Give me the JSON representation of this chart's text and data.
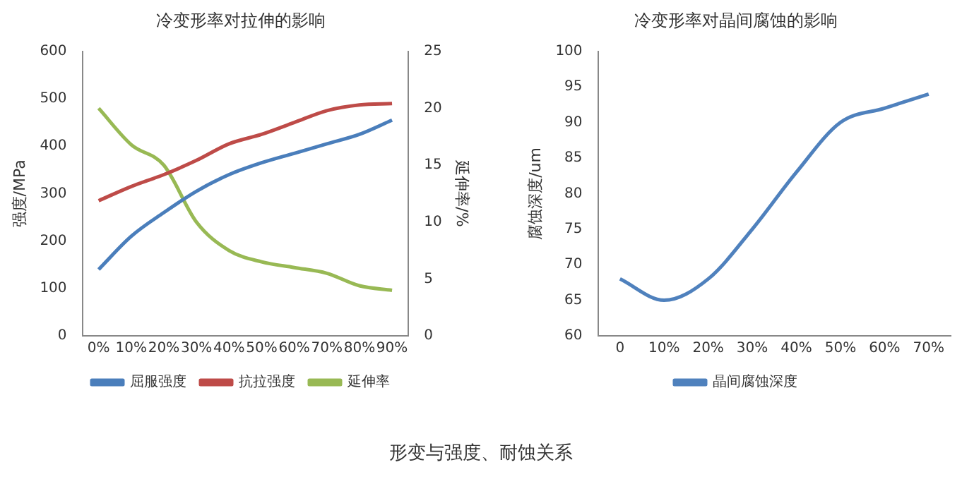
{
  "chart_data": [
    {
      "type": "line",
      "title": "冷变形率对拉伸的影响",
      "ylabel": "强度/MPa",
      "y2label": "延伸率/%",
      "categories": [
        "0%",
        "10%",
        "20%",
        "30%",
        "40%",
        "50%",
        "60%",
        "70%",
        "80%",
        "90%"
      ],
      "series": [
        {
          "name": "屈服强度",
          "color": "#4a7ebb",
          "values": [
            140,
            210,
            260,
            305,
            340,
            365,
            385,
            405,
            425,
            455
          ]
        },
        {
          "name": "抗拉强度",
          "color": "#be4b48",
          "values": [
            285,
            315,
            340,
            370,
            405,
            425,
            450,
            475,
            487,
            490
          ]
        },
        {
          "name": "延伸率",
          "color": "#98b954",
          "axis": "y2",
          "values": [
            20,
            16.8,
            15,
            10,
            7.5,
            6.5,
            6,
            5.5,
            4.4,
            4
          ]
        }
      ],
      "ylim": [
        0,
        600
      ],
      "yticks": [
        0,
        100,
        200,
        300,
        400,
        500,
        600
      ],
      "y2lim": [
        0,
        25
      ],
      "y2ticks": [
        0,
        5,
        10,
        15,
        20,
        25
      ],
      "grid": false,
      "legend": "bottom",
      "marker": "none",
      "line_style": "solid",
      "annotations": [
        "形变与强度、耐蚀关系"
      ]
    },
    {
      "type": "line",
      "title": "冷变形率对晶间腐蚀的影响",
      "ylabel": "腐蚀深度/um",
      "categories": [
        "0",
        "10%",
        "20%",
        "30%",
        "40%",
        "50%",
        "60%",
        "70%"
      ],
      "series": [
        {
          "name": "晶间腐蚀深度",
          "color": "#4f81bd",
          "values": [
            68,
            65,
            68,
            75,
            83,
            90,
            92,
            94
          ]
        }
      ],
      "ylim": [
        60,
        100
      ],
      "yticks": [
        60,
        65,
        70,
        75,
        80,
        85,
        90,
        95,
        100
      ],
      "grid": false,
      "legend": "bottom",
      "marker": "none",
      "line_style": "solid"
    }
  ]
}
